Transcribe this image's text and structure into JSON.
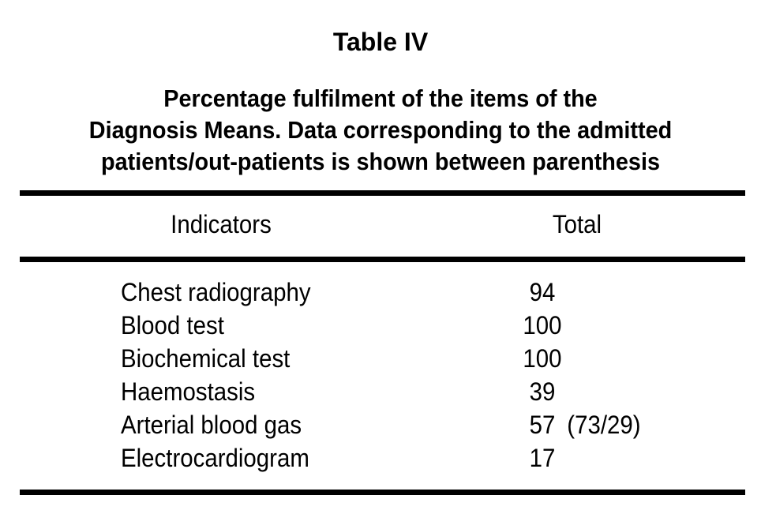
{
  "page": {
    "table_label": "Table IV",
    "caption": {
      "line1": "Percentage fulfilment of the items of the",
      "line2": "Diagnosis Means. Data corresponding to the admitted",
      "line3": "patients/out-patients is shown between parenthesis"
    }
  },
  "table": {
    "headers": {
      "indicators": "Indicators",
      "total": "Total"
    },
    "rows": [
      {
        "indicator": "Chest radiography",
        "total": "94",
        "paren": ""
      },
      {
        "indicator": "Blood test",
        "total": "100",
        "paren": ""
      },
      {
        "indicator": "Biochemical test",
        "total": "100",
        "paren": ""
      },
      {
        "indicator": "Haemostasis",
        "total": "39",
        "paren": ""
      },
      {
        "indicator": "Arterial blood gas",
        "total": "57",
        "paren": "(73/29)"
      },
      {
        "indicator": "Electrocardiogram",
        "total": "17",
        "paren": ""
      }
    ]
  },
  "chart_data": {
    "type": "table",
    "title": "Table IV",
    "subtitle": "Percentage fulfilment of the items of the Diagnosis Means. Data corresponding to the admitted patients/out-patients is shown between parenthesis",
    "columns": [
      "Indicators",
      "Total"
    ],
    "rows": [
      [
        "Chest radiography",
        "94"
      ],
      [
        "Blood test",
        "100"
      ],
      [
        "Biochemical test",
        "100"
      ],
      [
        "Haemostasis",
        "39"
      ],
      [
        "Arterial blood gas",
        "57 (73/29)"
      ],
      [
        "Electrocardiogram",
        "17"
      ]
    ]
  },
  "colors": {
    "text": "#000000",
    "rule": "#000000",
    "background": "#ffffff"
  }
}
